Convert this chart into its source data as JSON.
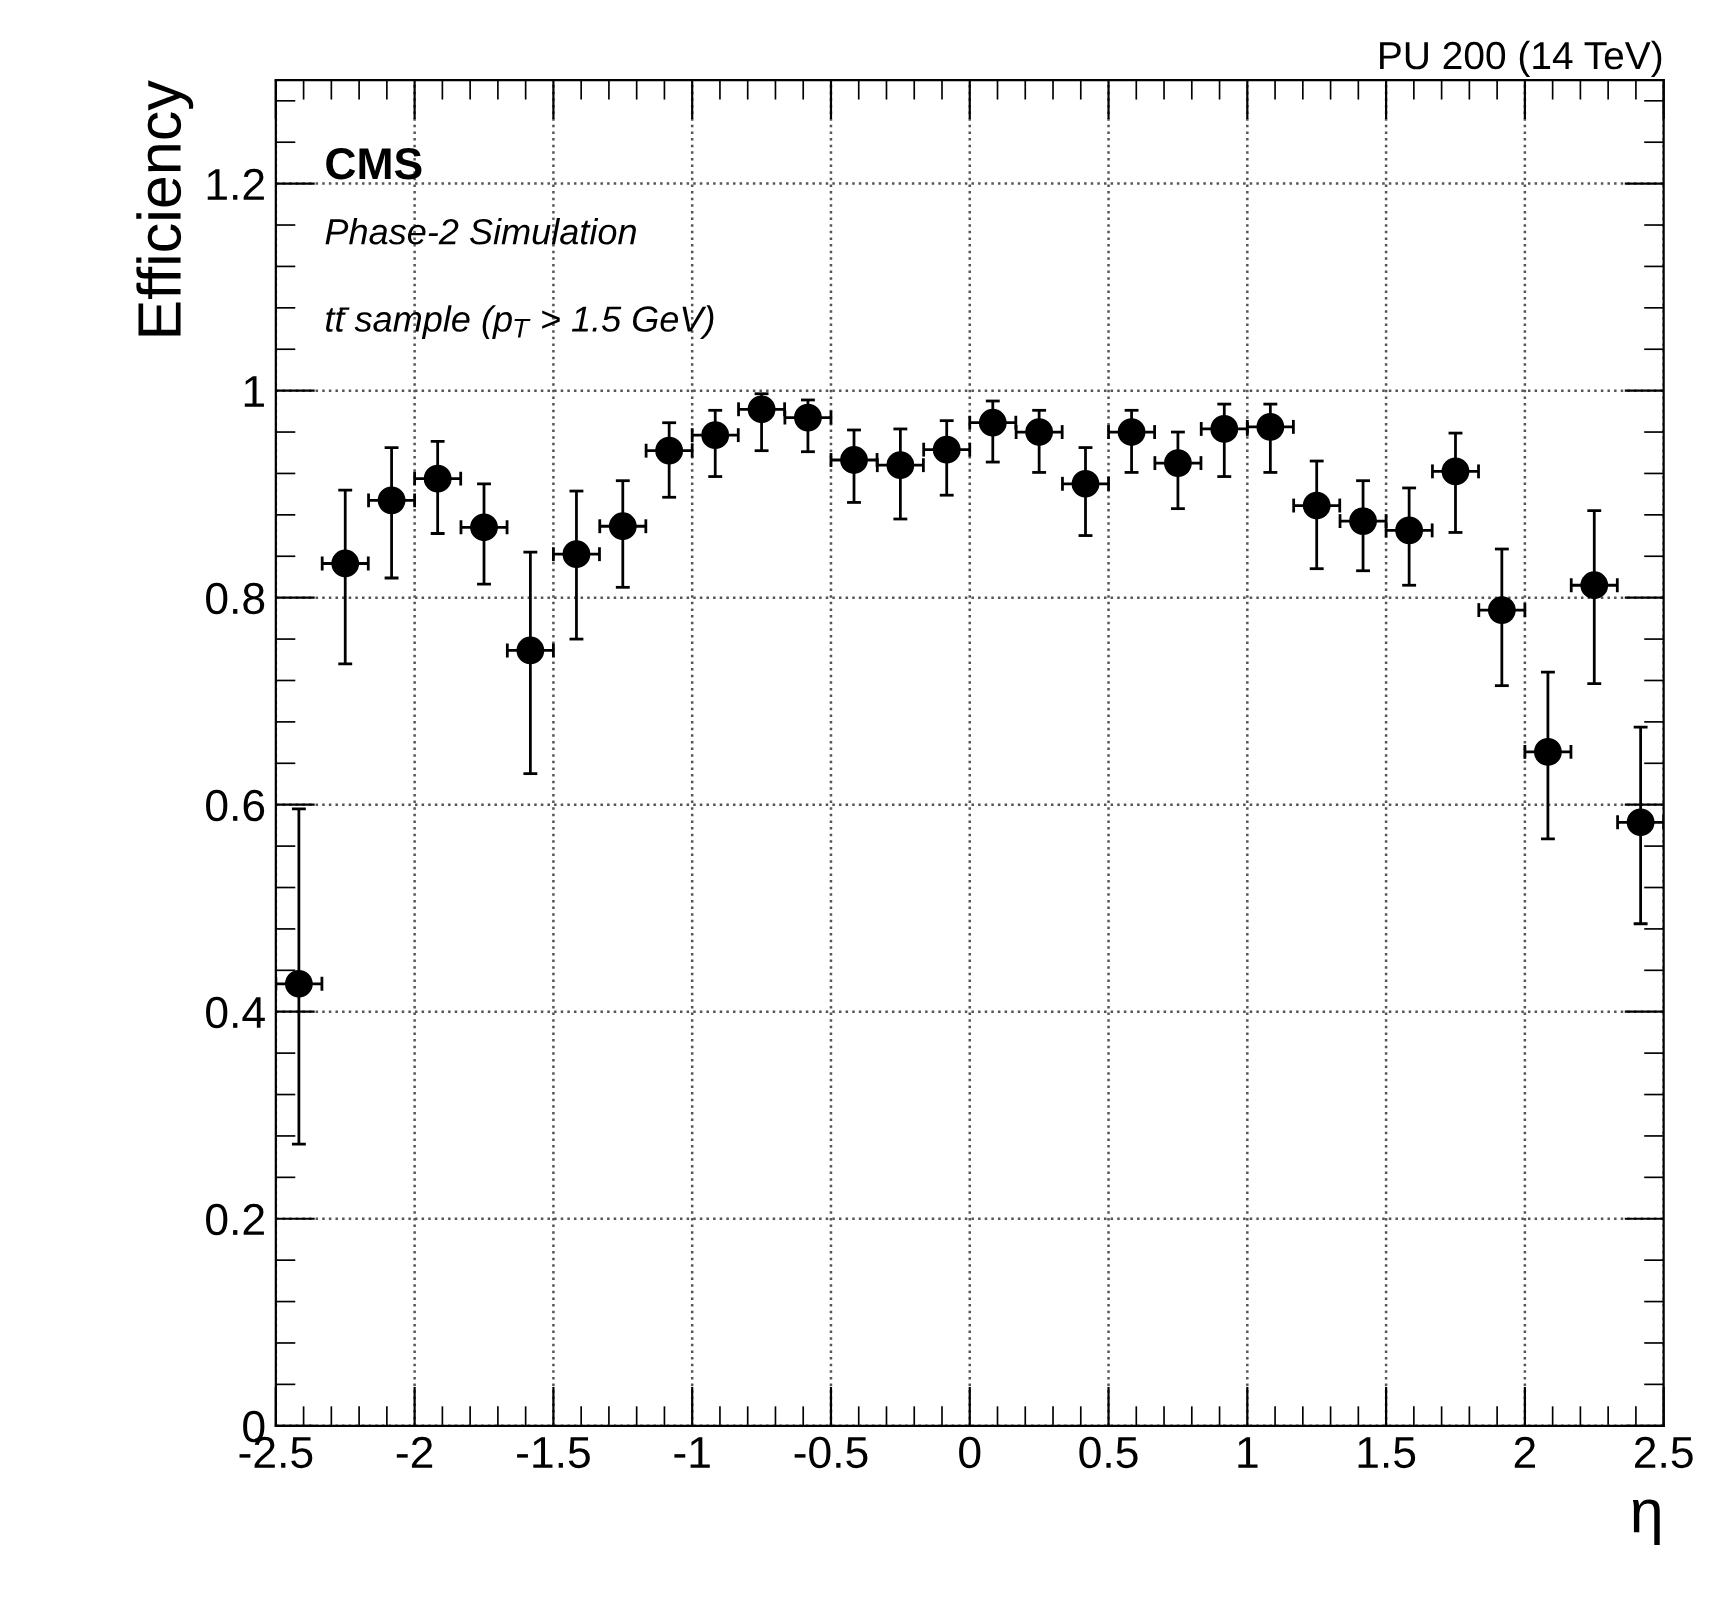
{
  "chart_data": {
    "type": "scatter",
    "title": "PU 200 (14 TeV)",
    "xlabel": "η",
    "ylabel": "Efficiency",
    "annotations": [
      "CMS",
      "Phase-2 Simulation",
      "tt̄ sample (p$_{T}$ > 1.5 GeV)"
    ],
    "x": [
      -2.417,
      -2.25,
      -2.083,
      -1.917,
      -1.75,
      -1.583,
      -1.417,
      -1.25,
      -1.083,
      -0.917,
      -0.75,
      -0.583,
      -0.417,
      -0.25,
      -0.083,
      0.083,
      0.25,
      0.417,
      0.583,
      0.75,
      0.917,
      1.083,
      1.25,
      1.417,
      1.583,
      1.75,
      1.917,
      2.083,
      2.25,
      2.417
    ],
    "series": [
      {
        "color": "#000000",
        "values": [
          0.427,
          0.833,
          0.894,
          0.915,
          0.868,
          0.749,
          0.842,
          0.869,
          0.942,
          0.957,
          0.982,
          0.974,
          0.933,
          0.928,
          0.943,
          0.969,
          0.96,
          0.91,
          0.96,
          0.93,
          0.963,
          0.965,
          0.889,
          0.874,
          0.865,
          0.922,
          0.788,
          0.651,
          0.812,
          0.583
        ],
        "errors": [
          [
            0.272,
            0.596
          ],
          [
            0.736,
            0.904
          ],
          [
            0.819,
            0.945
          ],
          [
            0.862,
            0.951
          ],
          [
            0.813,
            0.91
          ],
          [
            0.63,
            0.844
          ],
          [
            0.76,
            0.903
          ],
          [
            0.81,
            0.913
          ],
          [
            0.897,
            0.969
          ],
          [
            0.917,
            0.981
          ],
          [
            0.942,
            0.997
          ],
          [
            0.941,
            0.991
          ],
          [
            0.892,
            0.962
          ],
          [
            0.876,
            0.963
          ],
          [
            0.899,
            0.971
          ],
          [
            0.931,
            0.99
          ],
          [
            0.921,
            0.981
          ],
          [
            0.86,
            0.945
          ],
          [
            0.921,
            0.981
          ],
          [
            0.886,
            0.96
          ],
          [
            0.917,
            0.987
          ],
          [
            0.921,
            0.987
          ],
          [
            0.828,
            0.932
          ],
          [
            0.826,
            0.913
          ],
          [
            0.812,
            0.906
          ],
          [
            0.863,
            0.959
          ],
          [
            0.715,
            0.847
          ],
          [
            0.567,
            0.728
          ],
          [
            0.717,
            0.884
          ],
          [
            0.485,
            0.675
          ]
        ],
        "xerrors": [
          0.083,
          0.083,
          0.083,
          0.083,
          0.083,
          0.083,
          0.083,
          0.083,
          0.083,
          0.083,
          0.083,
          0.083,
          0.083,
          0.083,
          0.083,
          0.083,
          0.083,
          0.083,
          0.083,
          0.083,
          0.083,
          0.083,
          0.083,
          0.083,
          0.083,
          0.083,
          0.083,
          0.083,
          0.083,
          0.083
        ]
      }
    ],
    "xlim": [
      -2.5,
      2.5
    ],
    "ylim": [
      0,
      1.3
    ],
    "xticks": [
      -2.5,
      -2,
      -1.5,
      -1,
      -0.5,
      0,
      0.5,
      1,
      1.5,
      2,
      2.5
    ],
    "yticks": [
      0,
      0.2,
      0.4,
      0.6,
      0.8,
      1,
      1.2
    ],
    "grid": true,
    "marker": "circle"
  }
}
